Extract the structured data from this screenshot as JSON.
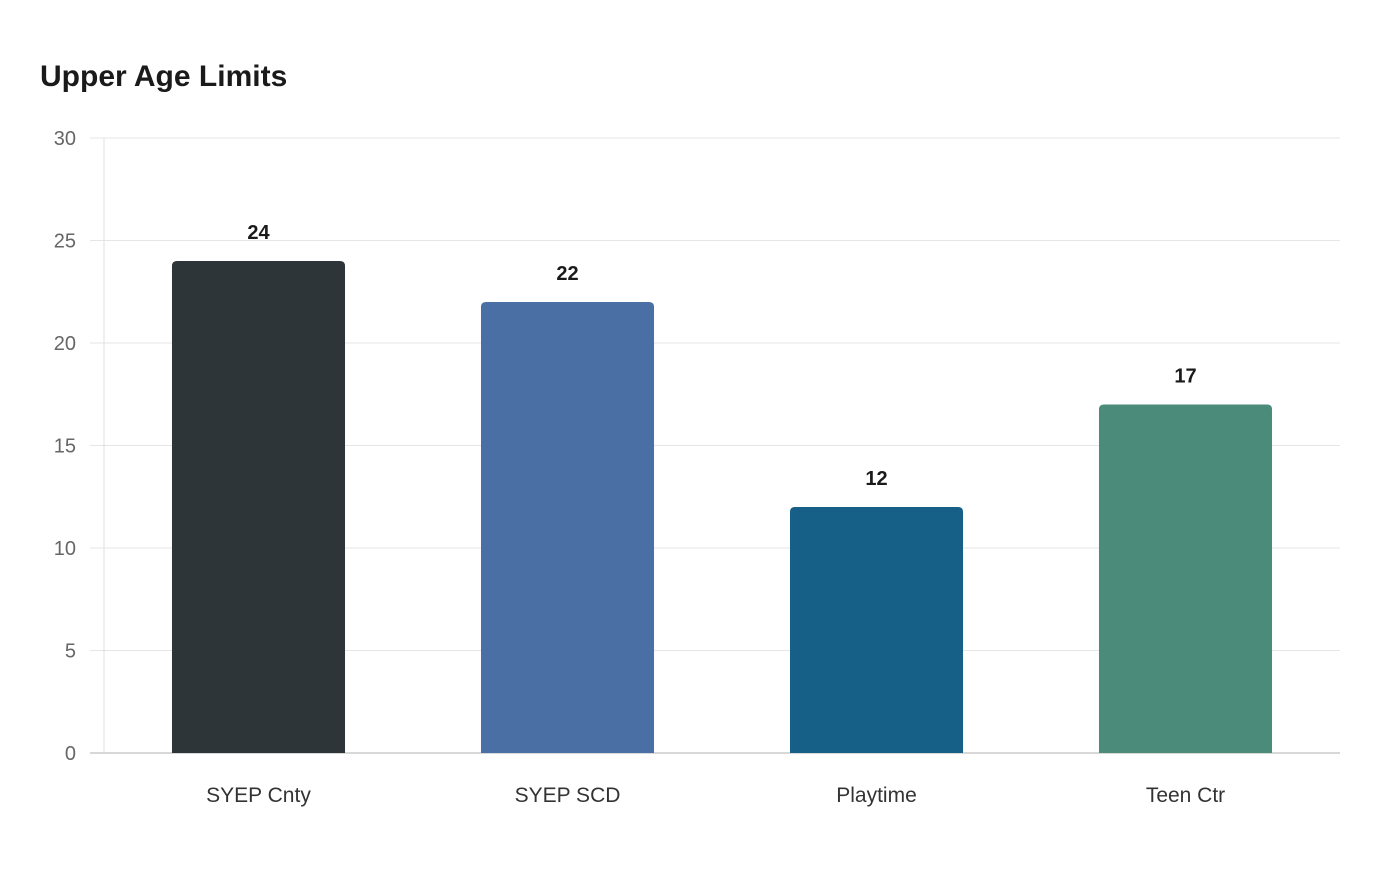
{
  "chart_data": {
    "type": "bar",
    "title": "Upper Age Limits",
    "xlabel": "",
    "ylabel": "",
    "categories": [
      "SYEP Cnty",
      "SYEP SCD",
      "Playtime",
      "Teen Ctr"
    ],
    "values": [
      24,
      22,
      12,
      17
    ],
    "colors": [
      "#2d3538",
      "#4a6fa5",
      "#166088",
      "#4b8b7a"
    ],
    "ylim": [
      0,
      30
    ],
    "yticks": [
      0,
      5,
      10,
      15,
      20,
      25,
      30
    ],
    "grid": true,
    "legend": "none",
    "data_labels": true
  }
}
